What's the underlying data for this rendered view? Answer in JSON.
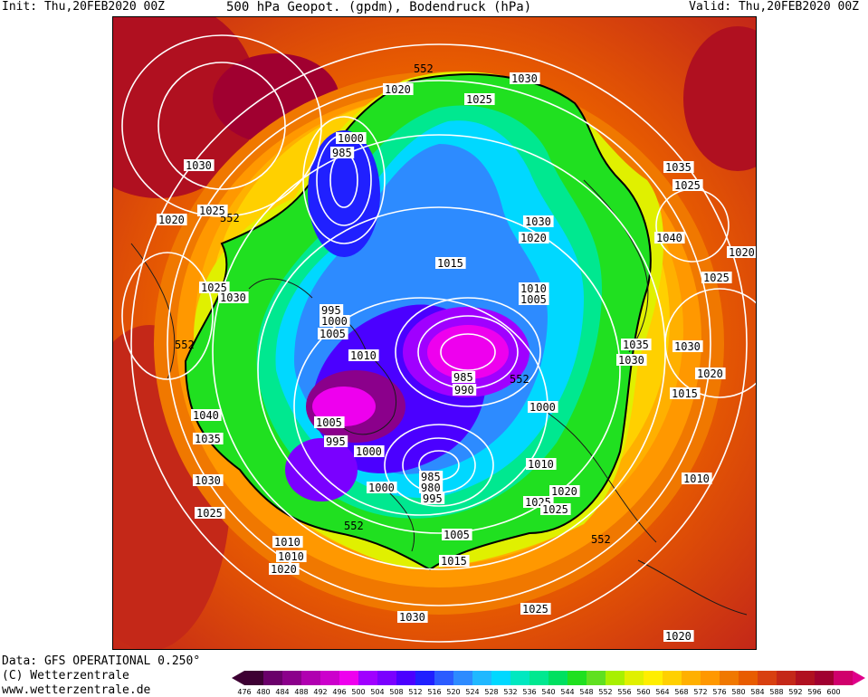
{
  "header": {
    "init": "Init: Thu,20FEB2020 00Z",
    "title": "500 hPa Geopot. (gpdm), Bodendruck (hPa)",
    "valid": "Valid: Thu,20FEB2020 00Z"
  },
  "footer": {
    "data": "Data: GFS OPERATIONAL 0.250°",
    "copyright": "(C) Wetterzentrale",
    "url": "www.wetterzentrale.de"
  },
  "legend": {
    "values": [
      "476",
      "480",
      "484",
      "488",
      "492",
      "496",
      "500",
      "504",
      "508",
      "512",
      "516",
      "520",
      "524",
      "528",
      "532",
      "536",
      "540",
      "544",
      "548",
      "552",
      "556",
      "560",
      "564",
      "568",
      "572",
      "576",
      "580",
      "584",
      "588",
      "592",
      "596",
      "600"
    ],
    "colors": [
      "#3d0033",
      "#6a006a",
      "#8b008b",
      "#b000b0",
      "#cc00cc",
      "#ee00ee",
      "#a000ff",
      "#7a00ff",
      "#4b00ff",
      "#2020ff",
      "#2b5cff",
      "#2d8bff",
      "#20b8ff",
      "#00d8ff",
      "#00e8c0",
      "#00e890",
      "#00e060",
      "#20e020",
      "#60e020",
      "#a8f000",
      "#e0f000",
      "#ffee00",
      "#ffd000",
      "#ffb000",
      "#ff9800",
      "#f07800",
      "#e85c00",
      "#d84010",
      "#c42818",
      "#b01020",
      "#a00030",
      "#d0006c",
      "#e0008a"
    ]
  },
  "map": {
    "contour_552_labels": [
      "552",
      "552",
      "552",
      "552",
      "552",
      "552"
    ],
    "isobar_labels": [
      "1030",
      "1020",
      "1025",
      "1000",
      "985",
      "1030",
      "1025",
      "1020",
      "1025",
      "1030",
      "1015",
      "1035",
      "1025",
      "1030",
      "1020",
      "1040",
      "1025",
      "1020",
      "1030",
      "1010",
      "1005",
      "995",
      "1000",
      "1005",
      "1010",
      "1040",
      "1035",
      "1005",
      "985",
      "990",
      "1035",
      "1030",
      "1020",
      "1015",
      "1000",
      "995",
      "1000",
      "1000",
      "1030",
      "1025",
      "1010",
      "1010",
      "1025",
      "1020",
      "1010",
      "1010",
      "1020",
      "1025",
      "985",
      "980",
      "995",
      "1005",
      "1015",
      "1030",
      "1025",
      "1020"
    ],
    "colors": {
      "max_ring": "#b01020",
      "ridge": "#e85c00",
      "warm": "#ffb000",
      "yellow": "#ffee00",
      "green": "#20e020",
      "cyan": "#00d8ff",
      "blue": "#2020ff",
      "violet": "#8b008b",
      "magenta": "#ee00ee",
      "isobar": "#ffffff",
      "contour552": "#000000"
    }
  }
}
